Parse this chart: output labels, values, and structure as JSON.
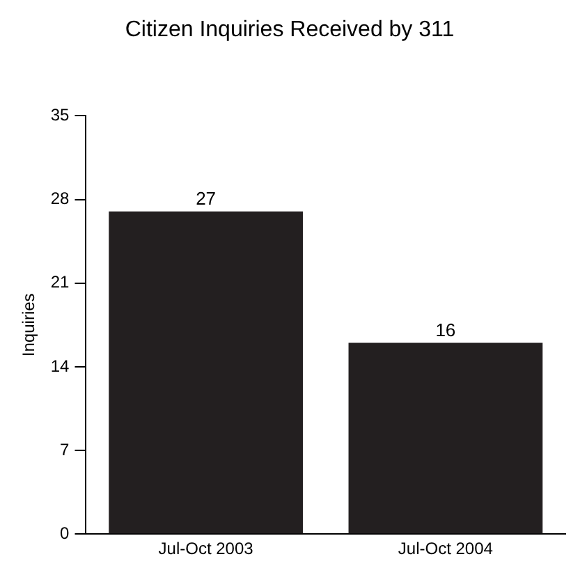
{
  "chart_data": {
    "type": "bar",
    "title": "Citizen Inquiries Received by 311",
    "ylabel": "Inquiries",
    "categories": [
      "Jul-Oct 2003",
      "Jul-Oct 2004"
    ],
    "values": [
      27,
      16
    ],
    "color": "#231f20",
    "ylim": [
      0,
      35
    ],
    "yticks": [
      0,
      7,
      14,
      21,
      28,
      35
    ],
    "grid": false,
    "data_labels": true
  }
}
